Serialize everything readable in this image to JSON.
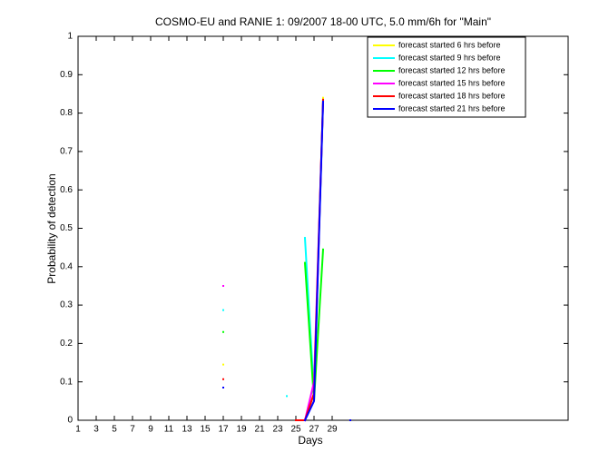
{
  "chart_data": {
    "type": "line",
    "title": "COSMO-EU and RANIE 1: 09/2007 18-00 UTC, 5.0 mm/6h for \"Main\"",
    "x_label": "Days",
    "y_label": "Probability of detection",
    "x": [
      17,
      18,
      24,
      25,
      26,
      27,
      28,
      30,
      31
    ],
    "series": [
      {
        "name": "forecast started 6 hrs before",
        "color": "#ffff00",
        "values": [
          0.145,
          null,
          null,
          null,
          0,
          0.07,
          0.84,
          null,
          null
        ]
      },
      {
        "name": "forecast started 9 hrs before",
        "color": "#00ffff",
        "values": [
          0.287,
          null,
          0.063,
          null,
          0.475,
          0.07,
          0.83,
          null,
          null
        ]
      },
      {
        "name": "forecast started 12 hrs before",
        "color": "#00ff00",
        "values": [
          0.23,
          null,
          null,
          null,
          0.41,
          0.05,
          0.445,
          null,
          null
        ]
      },
      {
        "name": "forecast started 15 hrs before",
        "color": "#ff00ff",
        "values": [
          0.35,
          null,
          null,
          null,
          0,
          0.1,
          0.83,
          null,
          null
        ]
      },
      {
        "name": "forecast started 18 hrs before",
        "color": "#ff0000",
        "values": [
          0.107,
          null,
          null,
          0,
          0,
          0.07,
          0.835,
          null,
          null
        ]
      },
      {
        "name": "forecast started 21 hrs before",
        "color": "#0000ff",
        "values": [
          0.085,
          null,
          null,
          null,
          0,
          0.05,
          0.83,
          null,
          0
        ]
      }
    ],
    "xlim": [
      1,
      55
    ],
    "xticks": [
      1,
      3,
      5,
      7,
      9,
      11,
      13,
      15,
      17,
      19,
      21,
      23,
      25,
      27,
      29
    ],
    "ylim": [
      0,
      1
    ],
    "yticks": [
      0,
      0.1,
      0.2,
      0.3,
      0.4,
      0.5,
      0.6,
      0.7,
      0.8,
      0.9,
      1
    ],
    "grid": false,
    "legend": "top-right"
  }
}
